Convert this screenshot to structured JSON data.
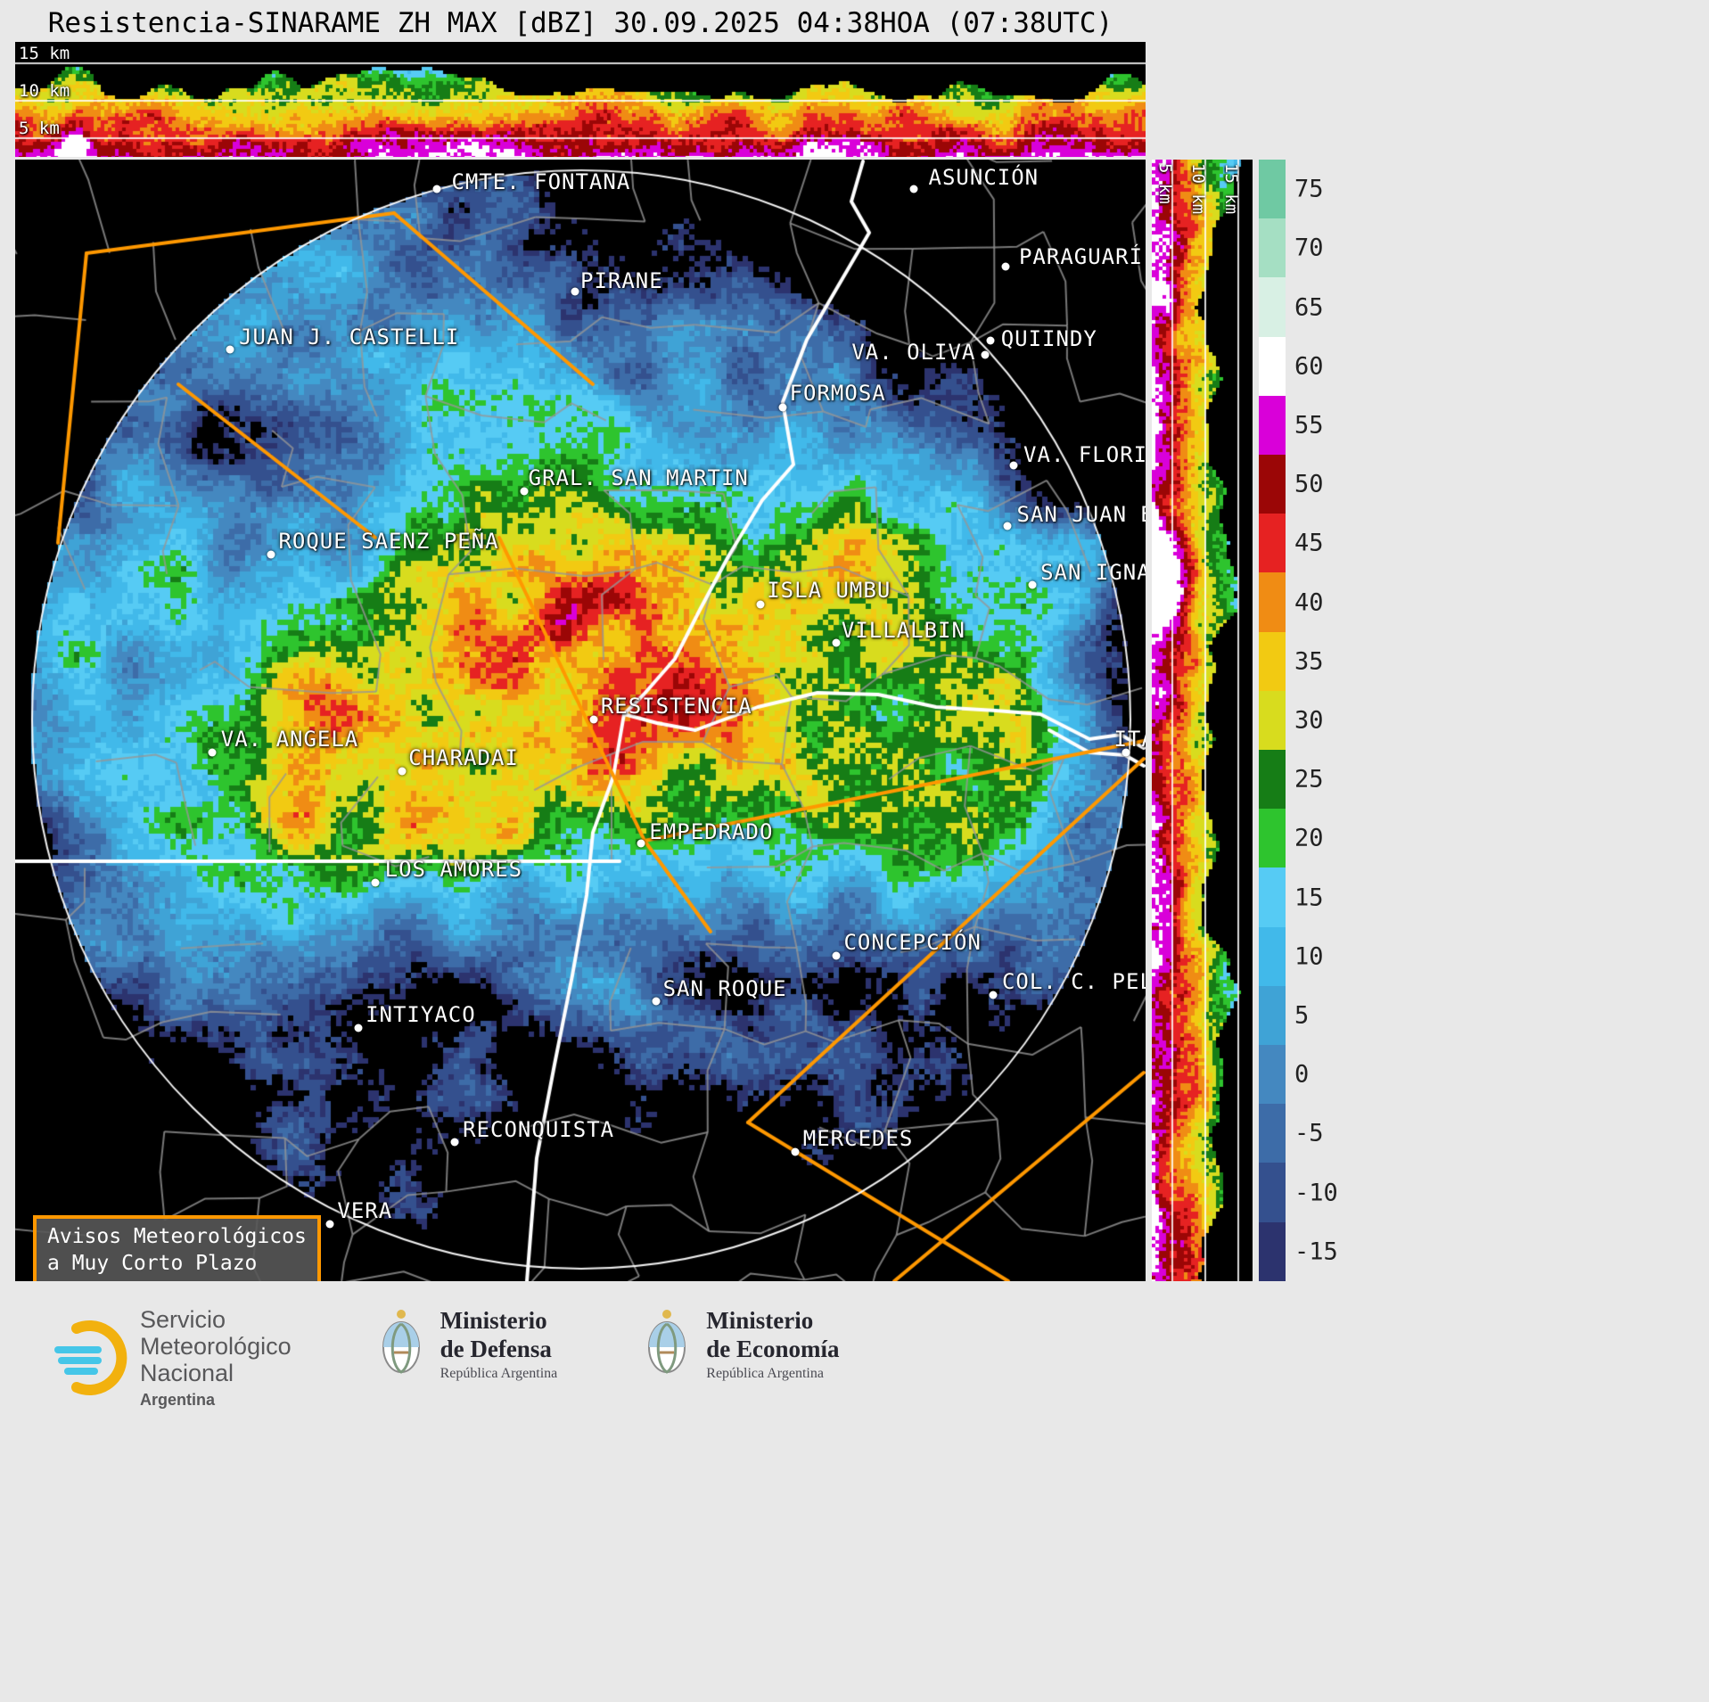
{
  "title": "Resistencia-SINARAME ZH MAX [dBZ] 30.09.2025 04:38HOA (07:38UTC)",
  "top_profile": {
    "axis_labels": [
      "15 km",
      "10 km",
      "5 km"
    ]
  },
  "right_profile": {
    "axis_labels": [
      "5 km",
      "10 km",
      "15 km"
    ]
  },
  "colorbar": {
    "unit": "dBZ",
    "ticks": [
      75,
      70,
      65,
      60,
      55,
      50,
      45,
      40,
      35,
      30,
      25,
      20,
      15,
      10,
      5,
      0,
      -5,
      -10,
      -15
    ],
    "palette": [
      {
        "value": -15,
        "color": "#2c336e"
      },
      {
        "value": -10,
        "color": "#34508e"
      },
      {
        "value": -5,
        "color": "#3d6ca8"
      },
      {
        "value": 0,
        "color": "#4488c0"
      },
      {
        "value": 5,
        "color": "#3fa3d6"
      },
      {
        "value": 10,
        "color": "#41b9ea"
      },
      {
        "value": 15,
        "color": "#56cbf4"
      },
      {
        "value": 20,
        "color": "#2ec42e"
      },
      {
        "value": 25,
        "color": "#167d16"
      },
      {
        "value": 30,
        "color": "#d8dc1e"
      },
      {
        "value": 35,
        "color": "#f2ca12"
      },
      {
        "value": 40,
        "color": "#f08c14"
      },
      {
        "value": 45,
        "color": "#e62222"
      },
      {
        "value": 50,
        "color": "#9b0606"
      },
      {
        "value": 55,
        "color": "#d900d9"
      },
      {
        "value": 60,
        "color": "#ffffff"
      },
      {
        "value": 65,
        "color": "#d8f0e4"
      },
      {
        "value": 70,
        "color": "#a5dfc3"
      },
      {
        "value": 75,
        "color": "#6fc9a3"
      }
    ]
  },
  "map": {
    "warning_box": {
      "line1": "Avisos Meteorológicos",
      "line2": "a Muy Corto Plazo"
    },
    "warning_color": "#ff9800",
    "cities": [
      {
        "name": "CMTE. FONTANA",
        "dot": [
          37.3,
          2.6
        ],
        "label": [
          38.6,
          2.0
        ]
      },
      {
        "name": "ASUNCIÓN",
        "dot": [
          79.5,
          2.6
        ],
        "label": [
          80.8,
          1.6
        ]
      },
      {
        "name": "PARAGUARÍ",
        "dot": [
          87.6,
          9.5
        ],
        "label": [
          88.8,
          8.7
        ]
      },
      {
        "name": "PIRANE",
        "dot": [
          49.5,
          11.8
        ],
        "label": [
          50.0,
          10.8
        ]
      },
      {
        "name": "JUAN J. CASTELLI",
        "dot": [
          19.0,
          16.9
        ],
        "label": [
          19.8,
          15.8
        ]
      },
      {
        "name": "VA. OLIVA",
        "dot": [
          85.8,
          17.4
        ],
        "label": [
          74.0,
          17.2
        ]
      },
      {
        "name": "QUIINDY",
        "dot": [
          86.3,
          16.1
        ],
        "label": [
          87.2,
          16.0
        ]
      },
      {
        "name": "FORMOSA",
        "dot": [
          67.9,
          22.1
        ],
        "label": [
          68.5,
          20.8
        ]
      },
      {
        "name": "VA. FLORIDA",
        "dot": [
          88.3,
          27.3
        ],
        "label": [
          89.2,
          26.3
        ]
      },
      {
        "name": "GRAL. SAN MARTIN",
        "dot": [
          45.0,
          29.6
        ],
        "label": [
          45.4,
          28.4
        ]
      },
      {
        "name": "SAN JUAN BAUTISTA",
        "dot": [
          87.8,
          32.7
        ],
        "label": [
          88.6,
          31.6
        ]
      },
      {
        "name": "ROQUE SAENZ PEÑA",
        "dot": [
          22.6,
          35.2
        ],
        "label": [
          23.3,
          34.0
        ]
      },
      {
        "name": "SAN IGNACIO",
        "dot": [
          90.0,
          37.9
        ],
        "label": [
          90.7,
          36.8
        ]
      },
      {
        "name": "ISLA UMBU",
        "dot": [
          65.9,
          39.7
        ],
        "label": [
          66.5,
          38.4
        ]
      },
      {
        "name": "VILLALBIN",
        "dot": [
          72.6,
          43.1
        ],
        "label": [
          73.1,
          42.0
        ]
      },
      {
        "name": "RESISTENCIA",
        "dot": [
          51.2,
          49.9
        ],
        "label": [
          51.8,
          48.7
        ]
      },
      {
        "name": "VA. ANGELA",
        "dot": [
          17.4,
          52.9
        ],
        "label": [
          18.2,
          51.7
        ]
      },
      {
        "name": "CHARADAI",
        "dot": [
          34.2,
          54.5
        ],
        "label": [
          34.8,
          53.3
        ]
      },
      {
        "name": "EMPEDRADO",
        "dot": [
          55.4,
          61.0
        ],
        "label": [
          56.1,
          59.9
        ]
      },
      {
        "name": "LOS AMORES",
        "dot": [
          31.9,
          64.5
        ],
        "label": [
          32.7,
          63.3
        ]
      },
      {
        "name": "CONCEPCIÓN",
        "dot": [
          72.6,
          71.0
        ],
        "label": [
          73.3,
          69.8
        ]
      },
      {
        "name": "SAN ROQUE",
        "dot": [
          56.7,
          75.0
        ],
        "label": [
          57.3,
          73.9
        ]
      },
      {
        "name": "COL. C. PELLEGRINI",
        "dot": [
          86.5,
          74.5
        ],
        "label": [
          87.3,
          73.3
        ]
      },
      {
        "name": "INTIYACO",
        "dot": [
          30.4,
          77.4
        ],
        "label": [
          31.0,
          76.2
        ]
      },
      {
        "name": "RECONQUISTA",
        "dot": [
          38.9,
          87.6
        ],
        "label": [
          39.6,
          86.5
        ]
      },
      {
        "name": "MERCEDES",
        "dot": [
          69.0,
          88.5
        ],
        "label": [
          69.7,
          87.3
        ]
      },
      {
        "name": "VERA",
        "dot": [
          27.8,
          94.9
        ],
        "label": [
          28.5,
          93.7
        ]
      },
      {
        "name": "ITATÍ",
        "dot": [
          98.3,
          52.9
        ],
        "label": [
          97.2,
          51.7
        ]
      }
    ]
  },
  "footer": {
    "smn": {
      "line1": "Servicio",
      "line2": "Meteorológico",
      "line3": "Nacional",
      "country": "Argentina"
    },
    "defensa": {
      "line1": "Ministerio",
      "line2": "de Defensa",
      "sub": "República Argentina"
    },
    "economia": {
      "line1": "Ministerio",
      "line2": "de Economía",
      "sub": "República Argentina"
    }
  }
}
